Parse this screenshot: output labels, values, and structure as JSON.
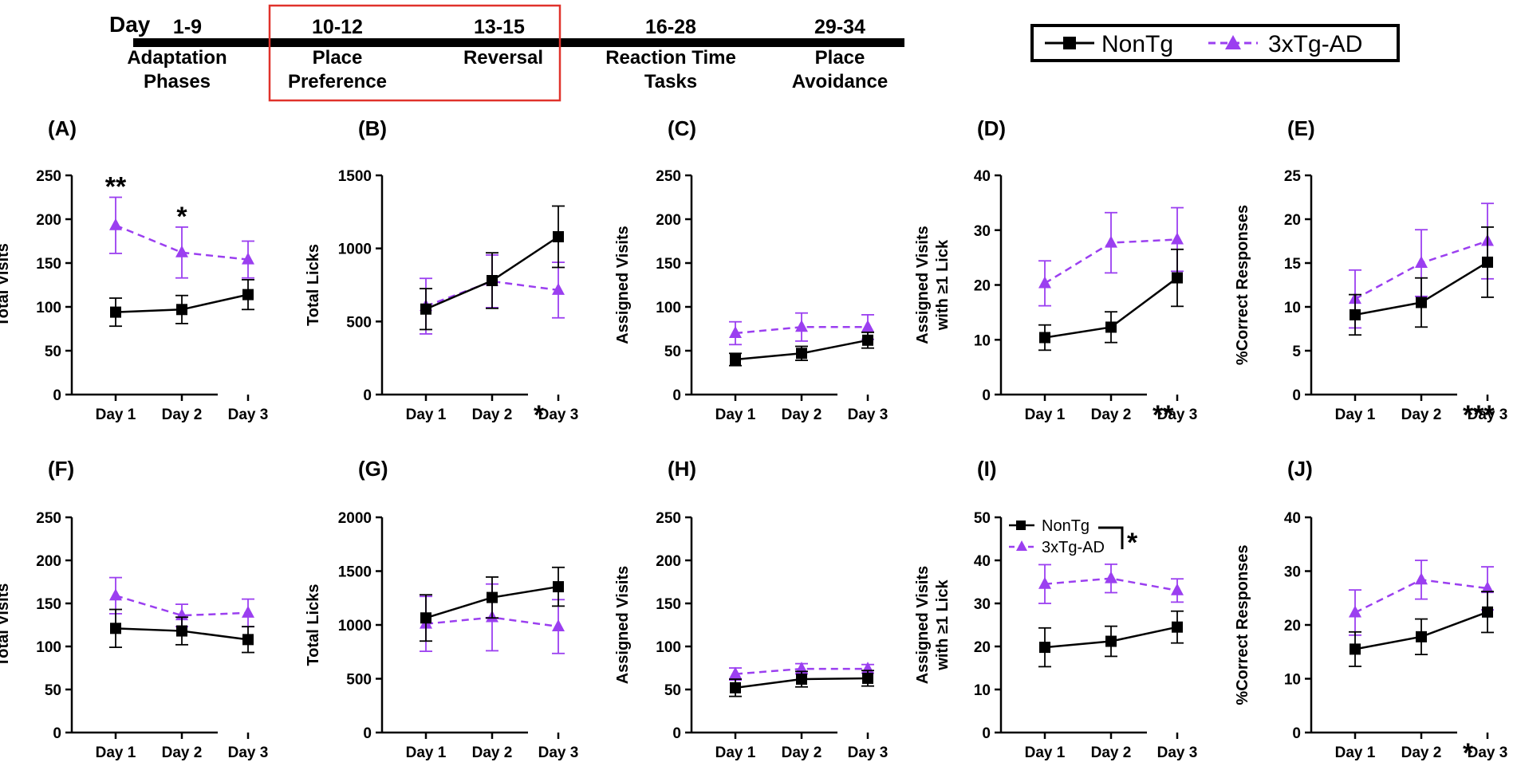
{
  "timeline": {
    "day_label": "Day",
    "phases": [
      {
        "days": "1-9",
        "name_line1": "Adaptation",
        "name_line2": "Phases"
      },
      {
        "days": "10-12",
        "name_line1": "Place",
        "name_line2": "Preference"
      },
      {
        "days": "13-15",
        "name_line1": "Reversal",
        "name_line2": ""
      },
      {
        "days": "16-28",
        "name_line1": "Reaction Time",
        "name_line2": "Tasks"
      },
      {
        "days": "29-34",
        "name_line1": "Place",
        "name_line2": "Avoidance"
      }
    ],
    "highlight_color": "#e0322b"
  },
  "legend": {
    "series": [
      {
        "name": "NonTg",
        "color": "#000000",
        "marker": "square",
        "dash": "solid"
      },
      {
        "name": "3xTg-AD",
        "color": "#9b3ff0",
        "marker": "triangle",
        "dash": "dashed"
      }
    ]
  },
  "colors": {
    "nontg": "#000000",
    "tg": "#9b3ff0"
  },
  "chart_data": [
    {
      "id": "A",
      "type": "line",
      "label": "(A)",
      "ylabel": "Total Visits",
      "ylabel2": "",
      "ylim": [
        0,
        250
      ],
      "yticks": [
        0,
        50,
        100,
        150,
        200,
        250
      ],
      "categories": [
        "Day 1",
        "Day 2",
        "Day 3"
      ],
      "series": [
        {
          "name": "NonTg",
          "values": [
            94,
            97,
            114
          ],
          "err": [
            16,
            16,
            17
          ]
        },
        {
          "name": "3xTg-AD",
          "values": [
            193,
            162,
            154
          ],
          "err": [
            32,
            29,
            21
          ]
        }
      ],
      "point_stars": [
        "**",
        "*",
        ""
      ],
      "corner_star": ""
    },
    {
      "id": "B",
      "type": "line",
      "label": "(B)",
      "ylabel": "Total Licks",
      "ylabel2": "",
      "ylim": [
        0,
        1500
      ],
      "yticks": [
        0,
        500,
        1000,
        1500
      ],
      "categories": [
        "Day 1",
        "Day 2",
        "Day 3"
      ],
      "series": [
        {
          "name": "NonTg",
          "values": [
            585,
            780,
            1080
          ],
          "err": [
            140,
            190,
            210
          ]
        },
        {
          "name": "3xTg-AD",
          "values": [
            605,
            775,
            715
          ],
          "err": [
            190,
            180,
            190
          ]
        }
      ],
      "point_stars": [
        "",
        "",
        ""
      ],
      "corner_star": "*"
    },
    {
      "id": "C",
      "type": "line",
      "label": "(C)",
      "ylabel": "Assigned Visits",
      "ylabel2": "",
      "ylim": [
        0,
        250
      ],
      "yticks": [
        0,
        50,
        100,
        150,
        200,
        250
      ],
      "categories": [
        "Day 1",
        "Day 2",
        "Day 3"
      ],
      "series": [
        {
          "name": "NonTg",
          "values": [
            40,
            47,
            62
          ],
          "err": [
            7,
            8,
            9
          ]
        },
        {
          "name": "3xTg-AD",
          "values": [
            70,
            77,
            77
          ],
          "err": [
            13,
            16,
            14
          ]
        }
      ],
      "point_stars": [
        "",
        "",
        ""
      ],
      "corner_star": ""
    },
    {
      "id": "D",
      "type": "line",
      "label": "(D)",
      "ylabel": "Assigned Visits",
      "ylabel2": "with ≥1 Lick",
      "ylim": [
        0,
        40
      ],
      "yticks": [
        0,
        10,
        20,
        30,
        40
      ],
      "categories": [
        "Day 1",
        "Day 2",
        "Day 3"
      ],
      "series": [
        {
          "name": "NonTg",
          "values": [
            10.4,
            12.3,
            21.3
          ],
          "err": [
            2.3,
            2.8,
            5.2
          ]
        },
        {
          "name": "3xTg-AD",
          "values": [
            20.3,
            27.7,
            28.3
          ],
          "err": [
            4.1,
            5.5,
            5.8
          ]
        }
      ],
      "point_stars": [
        "",
        "",
        ""
      ],
      "corner_star": "**"
    },
    {
      "id": "E",
      "type": "line",
      "label": "(E)",
      "ylabel": "%Correct Responses",
      "ylabel2": "",
      "ylim": [
        0,
        25
      ],
      "yticks": [
        0,
        5,
        10,
        15,
        20,
        25
      ],
      "categories": [
        "Day 1",
        "Day 2",
        "Day 3"
      ],
      "series": [
        {
          "name": "NonTg",
          "values": [
            9.1,
            10.5,
            15.1
          ],
          "err": [
            2.3,
            2.8,
            4.0
          ]
        },
        {
          "name": "3xTg-AD",
          "values": [
            10.9,
            15.0,
            17.5
          ],
          "err": [
            3.3,
            3.8,
            4.3
          ]
        }
      ],
      "point_stars": [
        "",
        "",
        ""
      ],
      "corner_star": "***"
    },
    {
      "id": "F",
      "type": "line",
      "label": "(F)",
      "ylabel": "Total Visits",
      "ylabel2": "",
      "ylim": [
        0,
        250
      ],
      "yticks": [
        0,
        50,
        100,
        150,
        200,
        250
      ],
      "categories": [
        "Day 1",
        "Day 2",
        "Day 3"
      ],
      "series": [
        {
          "name": "NonTg",
          "values": [
            121,
            118,
            108
          ],
          "err": [
            22,
            16,
            15
          ]
        },
        {
          "name": "3xTg-AD",
          "values": [
            159,
            136,
            139
          ],
          "err": [
            21,
            13,
            16
          ]
        }
      ],
      "point_stars": [
        "",
        "",
        ""
      ],
      "corner_star": ""
    },
    {
      "id": "G",
      "type": "line",
      "label": "(G)",
      "ylabel": "Total Licks",
      "ylabel2": "",
      "ylim": [
        0,
        2000
      ],
      "yticks": [
        0,
        500,
        1000,
        1500,
        2000
      ],
      "categories": [
        "Day 1",
        "Day 2",
        "Day 3"
      ],
      "series": [
        {
          "name": "NonTg",
          "values": [
            1065,
            1255,
            1355
          ],
          "err": [
            215,
            190,
            180
          ]
        },
        {
          "name": "3xTg-AD",
          "values": [
            1010,
            1070,
            985
          ],
          "err": [
            255,
            310,
            250
          ]
        }
      ],
      "point_stars": [
        "",
        "",
        ""
      ],
      "corner_star": ""
    },
    {
      "id": "H",
      "type": "line",
      "label": "(H)",
      "ylabel": "Assigned Visits",
      "ylabel2": "",
      "ylim": [
        0,
        250
      ],
      "yticks": [
        0,
        50,
        100,
        150,
        200,
        250
      ],
      "categories": [
        "Day 1",
        "Day 2",
        "Day 3"
      ],
      "series": [
        {
          "name": "NonTg",
          "values": [
            52,
            62,
            63
          ],
          "err": [
            10,
            9,
            9
          ]
        },
        {
          "name": "3xTg-AD",
          "values": [
            68,
            74,
            74
          ],
          "err": [
            7,
            6,
            5
          ]
        }
      ],
      "point_stars": [
        "",
        "",
        ""
      ],
      "corner_star": ""
    },
    {
      "id": "I",
      "type": "line",
      "label": "(I)",
      "ylabel": "Assigned Visits",
      "ylabel2": "with ≥1 Lick",
      "ylim": [
        0,
        50
      ],
      "yticks": [
        0,
        10,
        20,
        30,
        40,
        50
      ],
      "categories": [
        "Day 1",
        "Day 2",
        "Day 3"
      ],
      "series": [
        {
          "name": "NonTg",
          "values": [
            19.8,
            21.2,
            24.5
          ],
          "err": [
            4.5,
            3.5,
            3.7
          ]
        },
        {
          "name": "3xTg-AD",
          "values": [
            34.5,
            35.8,
            33.0
          ],
          "err": [
            4.5,
            3.3,
            2.7
          ]
        }
      ],
      "point_stars": [
        "",
        "",
        ""
      ],
      "corner_star": "",
      "inset_legend": {
        "entries": [
          "NonTg",
          "3xTg-AD"
        ],
        "star": "*"
      }
    },
    {
      "id": "J",
      "type": "line",
      "label": "(J)",
      "ylabel": "%Correct Responses",
      "ylabel2": "",
      "ylim": [
        0,
        40
      ],
      "yticks": [
        0,
        10,
        20,
        30,
        40
      ],
      "categories": [
        "Day 1",
        "Day 2",
        "Day 3"
      ],
      "series": [
        {
          "name": "NonTg",
          "values": [
            15.5,
            17.8,
            22.4
          ],
          "err": [
            3.2,
            3.3,
            3.8
          ]
        },
        {
          "name": "3xTg-AD",
          "values": [
            22.3,
            28.4,
            26.8
          ],
          "err": [
            4.2,
            3.6,
            4.0
          ]
        }
      ],
      "point_stars": [
        "",
        "",
        ""
      ],
      "corner_star": "*"
    }
  ]
}
